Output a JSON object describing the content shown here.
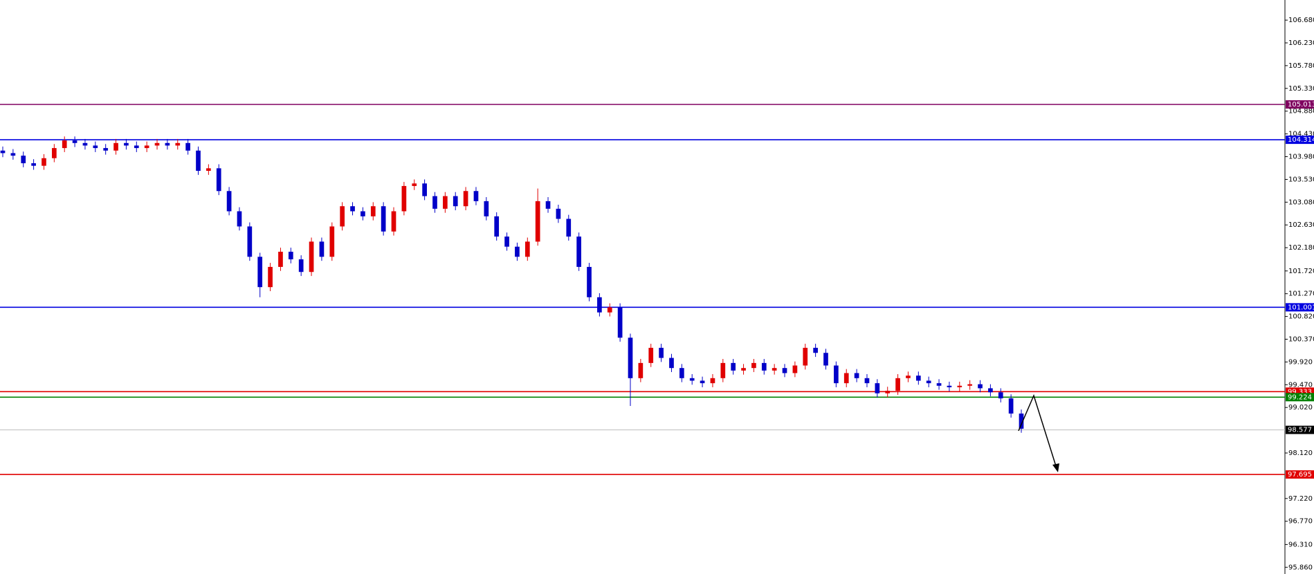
{
  "chart_data": {
    "type": "candlestick",
    "up_color": "#e00000",
    "down_color": "#0000c8",
    "open": [
      104.1,
      104.05,
      104.0,
      103.85,
      103.8,
      103.95,
      104.15,
      104.3,
      104.25,
      104.2,
      104.15,
      104.1,
      104.25,
      104.2,
      104.15,
      104.2,
      104.25,
      104.2,
      104.25,
      104.1,
      103.7,
      103.75,
      103.3,
      102.9,
      102.6,
      102.0,
      101.4,
      101.8,
      102.1,
      101.95,
      101.7,
      102.3,
      102.0,
      102.6,
      103.0,
      102.9,
      102.8,
      103.0,
      102.5,
      102.9,
      103.4,
      103.45,
      103.2,
      102.95,
      103.2,
      103.0,
      103.3,
      103.1,
      102.8,
      102.4,
      102.2,
      102.0,
      102.3,
      103.1,
      102.95,
      102.75,
      102.4,
      101.8,
      101.2,
      100.9,
      101.0,
      100.4,
      99.6,
      99.9,
      100.2,
      100.0,
      99.8,
      99.6,
      99.55,
      99.5,
      99.6,
      99.9,
      99.75,
      99.8,
      99.9,
      99.75,
      99.8,
      99.7,
      99.85,
      100.2,
      100.1,
      99.85,
      99.5,
      99.7,
      99.6,
      99.5,
      99.3,
      99.35,
      99.6,
      99.65,
      99.55,
      99.5,
      99.45,
      99.42,
      99.45,
      99.48,
      99.4,
      99.32,
      99.2,
      98.9
    ],
    "high": [
      104.18,
      104.13,
      104.08,
      103.93,
      104.03,
      104.23,
      104.38,
      104.38,
      104.33,
      104.28,
      104.23,
      104.33,
      104.33,
      104.28,
      104.28,
      104.33,
      104.33,
      104.33,
      104.33,
      104.18,
      103.83,
      103.83,
      103.38,
      102.98,
      102.68,
      102.08,
      101.88,
      102.18,
      102.18,
      102.03,
      102.38,
      102.38,
      102.68,
      103.08,
      103.08,
      102.98,
      103.08,
      103.08,
      102.98,
      103.48,
      103.53,
      103.53,
      103.28,
      103.28,
      103.28,
      103.38,
      103.38,
      103.18,
      102.88,
      102.48,
      102.28,
      102.38,
      103.35,
      103.18,
      103.03,
      102.83,
      102.48,
      101.88,
      101.28,
      101.08,
      101.08,
      100.48,
      99.98,
      100.28,
      100.28,
      100.08,
      99.88,
      99.68,
      99.63,
      99.68,
      99.98,
      99.98,
      99.88,
      99.98,
      99.98,
      99.88,
      99.88,
      99.93,
      100.28,
      100.28,
      100.18,
      99.93,
      99.78,
      99.78,
      99.68,
      99.58,
      99.43,
      99.68,
      99.73,
      99.73,
      99.63,
      99.58,
      99.53,
      99.53,
      99.56,
      99.56,
      99.48,
      99.4,
      99.28,
      98.98
    ],
    "low": [
      103.97,
      103.92,
      103.77,
      103.72,
      103.72,
      103.87,
      104.07,
      104.17,
      104.12,
      104.07,
      104.02,
      104.02,
      104.12,
      104.07,
      104.07,
      104.12,
      104.12,
      104.12,
      104.02,
      103.62,
      103.62,
      103.22,
      102.82,
      102.52,
      101.92,
      101.2,
      101.32,
      101.72,
      101.87,
      101.62,
      101.62,
      101.92,
      101.92,
      102.52,
      102.82,
      102.72,
      102.72,
      102.42,
      102.42,
      102.82,
      103.32,
      103.12,
      102.87,
      102.87,
      102.92,
      102.92,
      103.02,
      102.72,
      102.32,
      102.12,
      101.92,
      101.92,
      102.22,
      102.87,
      102.67,
      102.32,
      101.72,
      101.12,
      100.82,
      100.82,
      100.32,
      99.05,
      99.52,
      99.82,
      99.92,
      99.72,
      99.52,
      99.47,
      99.42,
      99.42,
      99.52,
      99.67,
      99.67,
      99.72,
      99.67,
      99.67,
      99.62,
      99.62,
      99.77,
      100.02,
      99.77,
      99.42,
      99.42,
      99.52,
      99.42,
      99.22,
      99.22,
      99.27,
      99.52,
      99.47,
      99.42,
      99.37,
      99.34,
      99.34,
      99.37,
      99.32,
      99.24,
      99.12,
      98.82,
      98.52
    ],
    "close": [
      104.05,
      104.0,
      103.85,
      103.8,
      103.95,
      104.15,
      104.3,
      104.25,
      104.2,
      104.15,
      104.1,
      104.25,
      104.2,
      104.15,
      104.2,
      104.25,
      104.2,
      104.25,
      104.1,
      103.7,
      103.75,
      103.3,
      102.9,
      102.6,
      102.0,
      101.4,
      101.8,
      102.1,
      101.95,
      101.7,
      102.3,
      102.0,
      102.6,
      103.0,
      102.9,
      102.8,
      103.0,
      102.5,
      102.9,
      103.4,
      103.45,
      103.2,
      102.95,
      103.2,
      103.0,
      103.3,
      103.1,
      102.8,
      102.4,
      102.2,
      102.0,
      102.3,
      103.1,
      102.95,
      102.75,
      102.4,
      101.8,
      101.2,
      100.9,
      101.0,
      100.4,
      99.6,
      99.9,
      100.2,
      100.0,
      99.8,
      99.6,
      99.55,
      99.5,
      99.6,
      99.9,
      99.75,
      99.8,
      99.9,
      99.75,
      99.8,
      99.7,
      99.85,
      100.2,
      100.1,
      99.85,
      99.5,
      99.7,
      99.6,
      99.5,
      99.3,
      99.35,
      99.6,
      99.65,
      99.55,
      99.5,
      99.45,
      99.42,
      99.45,
      99.48,
      99.4,
      99.32,
      99.2,
      98.9,
      98.6
    ],
    "ylim": [
      95.727,
      107.078
    ],
    "yticks": [
      {
        "value": 106.68,
        "label": "106.680"
      },
      {
        "value": 106.23,
        "label": "106.230"
      },
      {
        "value": 105.78,
        "label": "105.780"
      },
      {
        "value": 105.33,
        "label": "105.330"
      },
      {
        "value": 104.88,
        "label": "104.880"
      },
      {
        "value": 104.43,
        "label": "104.430"
      },
      {
        "value": 103.98,
        "label": "103.980"
      },
      {
        "value": 103.53,
        "label": "103.530"
      },
      {
        "value": 103.08,
        "label": "103.080"
      },
      {
        "value": 102.63,
        "label": "102.630"
      },
      {
        "value": 102.18,
        "label": "102.180"
      },
      {
        "value": 101.72,
        "label": "101.720"
      },
      {
        "value": 101.27,
        "label": "101.270"
      },
      {
        "value": 100.82,
        "label": "100.820"
      },
      {
        "value": 100.37,
        "label": "100.370"
      },
      {
        "value": 99.92,
        "label": "99.920"
      },
      {
        "value": 99.47,
        "label": "99.470"
      },
      {
        "value": 99.02,
        "label": "99.020"
      },
      {
        "value": 98.12,
        "label": "98.120"
      },
      {
        "value": 97.22,
        "label": "97.220"
      },
      {
        "value": 96.77,
        "label": "96.770"
      },
      {
        "value": 96.31,
        "label": "96.310"
      },
      {
        "value": 95.86,
        "label": "95.860"
      }
    ],
    "levels": [
      {
        "value": 105.013,
        "label": "105.013",
        "color": "#800060"
      },
      {
        "value": 104.314,
        "label": "104.314",
        "color": "#0000e0"
      },
      {
        "value": 101.001,
        "label": "101.001",
        "color": "#0000e0"
      },
      {
        "value": 99.333,
        "label": "99.333",
        "color": "#e00000"
      },
      {
        "value": 99.224,
        "label": "99.224",
        "color": "#008000"
      },
      {
        "value": 97.695,
        "label": "97.695",
        "color": "#e00000"
      },
      {
        "value": 98.577,
        "label": "98.577",
        "color": "#000000"
      }
    ]
  }
}
